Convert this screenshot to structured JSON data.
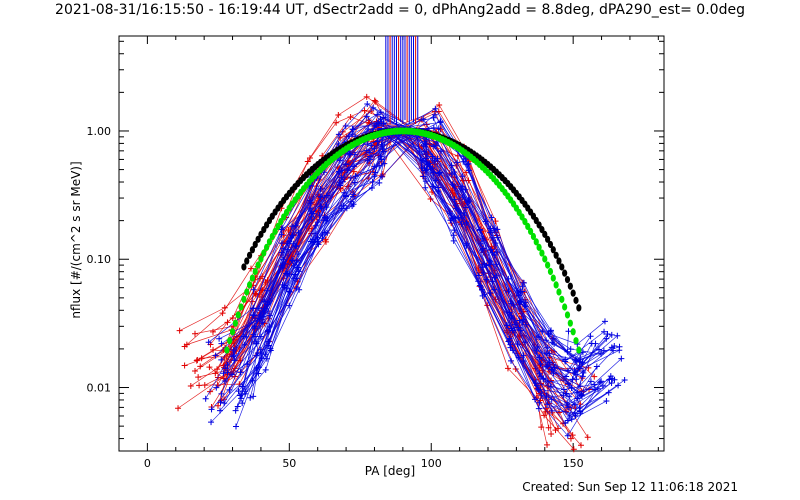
{
  "chart_data": {
    "type": "line",
    "title": "2021-08-31/16:15:50 - 16:19:44 UT, dSectr2add = 0, dPhAng2add = 8.8deg, dPA290_est=  0.0deg",
    "xlabel": "PA [deg]",
    "ylabel": "nflux [#/(cm^2 s sr MeV)]",
    "xlim": [
      -10,
      182
    ],
    "ylim": [
      0.0032,
      5.5
    ],
    "yscale": "log",
    "x_ticks": [
      0,
      50,
      100,
      150
    ],
    "x_tick_labels": [
      "0",
      "50",
      "100",
      "150"
    ],
    "y_ticks": [
      0.01,
      0.1,
      1.0
    ],
    "y_tick_labels": [
      "0.01",
      "0.10",
      "1.00"
    ],
    "grid": false,
    "colors": {
      "red": "#e00000",
      "blue": "#0000e0",
      "black": "#000000",
      "green": "#00e000"
    },
    "series": [
      {
        "color": "red",
        "marker": "plus",
        "left": {
          "x": [
            20,
            30,
            40,
            50,
            60,
            70,
            80,
            90
          ],
          "y": [
            0.015,
            0.02,
            0.05,
            0.12,
            0.3,
            0.6,
            0.85,
            1.0
          ]
        },
        "right": {
          "x": [
            90,
            100,
            110,
            120,
            130,
            140,
            148
          ],
          "y": [
            1.0,
            0.7,
            0.35,
            0.1,
            0.03,
            0.012,
            0.007
          ]
        }
      },
      {
        "color": "blue",
        "marker": "plus",
        "left": {
          "x": [
            30,
            40,
            50,
            60,
            70,
            80,
            90
          ],
          "y": [
            0.012,
            0.03,
            0.1,
            0.25,
            0.55,
            0.85,
            1.0
          ]
        },
        "right": {
          "x": [
            90,
            100,
            110,
            120,
            130,
            140,
            150,
            158
          ],
          "y": [
            1.0,
            0.65,
            0.3,
            0.1,
            0.035,
            0.015,
            0.01,
            0.015
          ]
        }
      }
    ],
    "fits": [
      {
        "color": "black",
        "pa_start": 34,
        "pa_end": 152
      },
      {
        "color": "green",
        "pa_start": 28,
        "pa_end": 152
      }
    ]
  },
  "footer": "Created: Sun Sep 12 11:06:18 2021"
}
